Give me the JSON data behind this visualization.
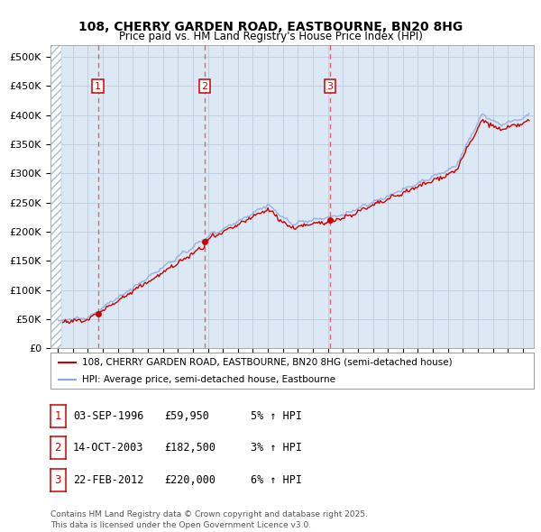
{
  "title_line1": "108, CHERRY GARDEN ROAD, EASTBOURNE, BN20 8HG",
  "title_line2": "Price paid vs. HM Land Registry's House Price Index (HPI)",
  "plot_bg_color": "#dce9f5",
  "sale_color": "#cc0000",
  "hpi_color": "#88aadd",
  "ylim": [
    0,
    520000
  ],
  "yticks": [
    0,
    50000,
    100000,
    150000,
    200000,
    250000,
    300000,
    350000,
    400000,
    450000,
    500000
  ],
  "ytick_labels": [
    "£0",
    "£50K",
    "£100K",
    "£150K",
    "£200K",
    "£250K",
    "£300K",
    "£350K",
    "£400K",
    "£450K",
    "£500K"
  ],
  "xlim_start": 1993.5,
  "xlim_end": 2025.7,
  "sales": [
    {
      "year": 1996.67,
      "price": 59950,
      "label": "1"
    },
    {
      "year": 2003.79,
      "price": 182500,
      "label": "2"
    },
    {
      "year": 2012.13,
      "price": 220000,
      "label": "3"
    }
  ],
  "legend_entries": [
    "108, CHERRY GARDEN ROAD, EASTBOURNE, BN20 8HG (semi-detached house)",
    "HPI: Average price, semi-detached house, Eastbourne"
  ],
  "table_rows": [
    {
      "num": "1",
      "date": "03-SEP-1996",
      "price": "£59,950",
      "change": "5% ↑ HPI"
    },
    {
      "num": "2",
      "date": "14-OCT-2003",
      "price": "£182,500",
      "change": "3% ↑ HPI"
    },
    {
      "num": "3",
      "date": "22-FEB-2012",
      "price": "£220,000",
      "change": "6% ↑ HPI"
    }
  ],
  "footer": "Contains HM Land Registry data © Crown copyright and database right 2025.\nThis data is licensed under the Open Government Licence v3.0."
}
